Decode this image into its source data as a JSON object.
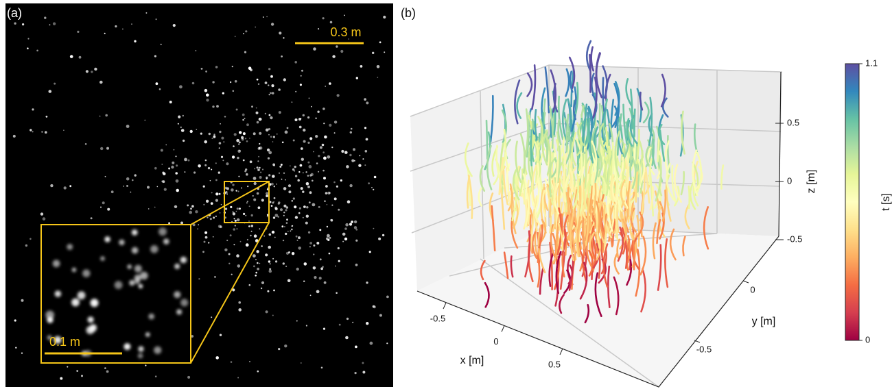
{
  "panel_a": {
    "label": "(a)",
    "scale_bar_main": "0.3 m",
    "scale_bar_inset": "0.1 m"
  },
  "panel_b": {
    "label": "(b)",
    "x_axis": {
      "label": "x [m]",
      "ticks": [
        -0.5,
        0,
        0.5
      ]
    },
    "y_axis": {
      "label": "y [m]",
      "ticks": [
        -0.5,
        0
      ]
    },
    "z_axis": {
      "label": "z [m]",
      "ticks": [
        -0.5,
        0,
        0.5
      ]
    },
    "colorbar": {
      "label": "t [s]",
      "ticks": [
        0,
        1.1
      ]
    }
  }
}
